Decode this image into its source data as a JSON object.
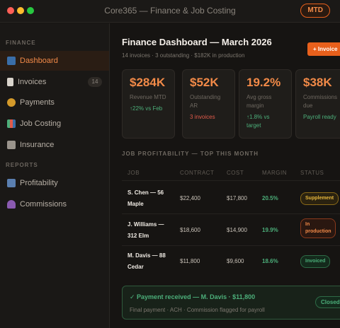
{
  "window": {
    "title": "Core365 — Finance & Job Costing",
    "workspace": "MTD"
  },
  "sidebar": {
    "sections": [
      {
        "label": "FINANCE",
        "items": [
          {
            "label": "Dashboard",
            "icon": "card-icon",
            "active": true
          },
          {
            "label": "Invoices",
            "icon": "document-icon",
            "count": "14"
          },
          {
            "label": "Payments",
            "icon": "money-bag-icon"
          },
          {
            "label": "Job Costing",
            "icon": "bar-chart-icon"
          },
          {
            "label": "Insurance",
            "icon": "bank-icon"
          }
        ]
      },
      {
        "label": "REPORTS",
        "items": [
          {
            "label": "Profitability",
            "icon": "trend-icon"
          },
          {
            "label": "Commissions",
            "icon": "person-icon"
          }
        ]
      }
    ]
  },
  "header": {
    "title": "Finance Dashboard — March 2026",
    "subtitle": "14 invoices · 3 outstanding · $182K in production",
    "new_button": "+ Invoice"
  },
  "kpis": [
    {
      "value": "$284K",
      "label": "Revenue MTD",
      "delta": "↑22% vs Feb",
      "tone": "up"
    },
    {
      "value": "$52K",
      "label": "Outstanding AR",
      "delta": "3 invoices",
      "tone": "warn"
    },
    {
      "value": "19.2%",
      "label": "Avg gross margin",
      "delta": "↑1.8% vs target",
      "tone": "up"
    },
    {
      "value": "$38K",
      "label": "Commissions due",
      "delta": "Payroll ready",
      "tone": "up"
    }
  ],
  "table": {
    "title": "JOB PROFITABILITY — TOP THIS MONTH",
    "columns": [
      "JOB",
      "CONTRACT",
      "COST",
      "MARGIN",
      "STATUS"
    ],
    "rows": [
      {
        "job": "S. Chen — 56 Maple",
        "contract": "$22,400",
        "cost": "$17,800",
        "margin": "20.5%",
        "status": "Supplement",
        "status_type": "supp"
      },
      {
        "job": "J. Williams — 312 Elm",
        "contract": "$18,600",
        "cost": "$14,900",
        "margin": "19.9%",
        "status": "In production",
        "status_type": "prod"
      },
      {
        "job": "M. Davis — 88 Cedar",
        "contract": "$11,800",
        "cost": "$9,600",
        "margin": "18.6%",
        "status": "Invoiced",
        "status_type": "inv"
      }
    ]
  },
  "notice": {
    "title": "✓ Payment received — M. Davis · $11,800",
    "subtitle": "Final payment · ACH · Commission flagged for payroll",
    "badge": "Closed"
  },
  "colors": {
    "accent": "#e8601c",
    "positive": "#4caf7a",
    "negative": "#e05a4a",
    "warning": "#e8b83c"
  }
}
